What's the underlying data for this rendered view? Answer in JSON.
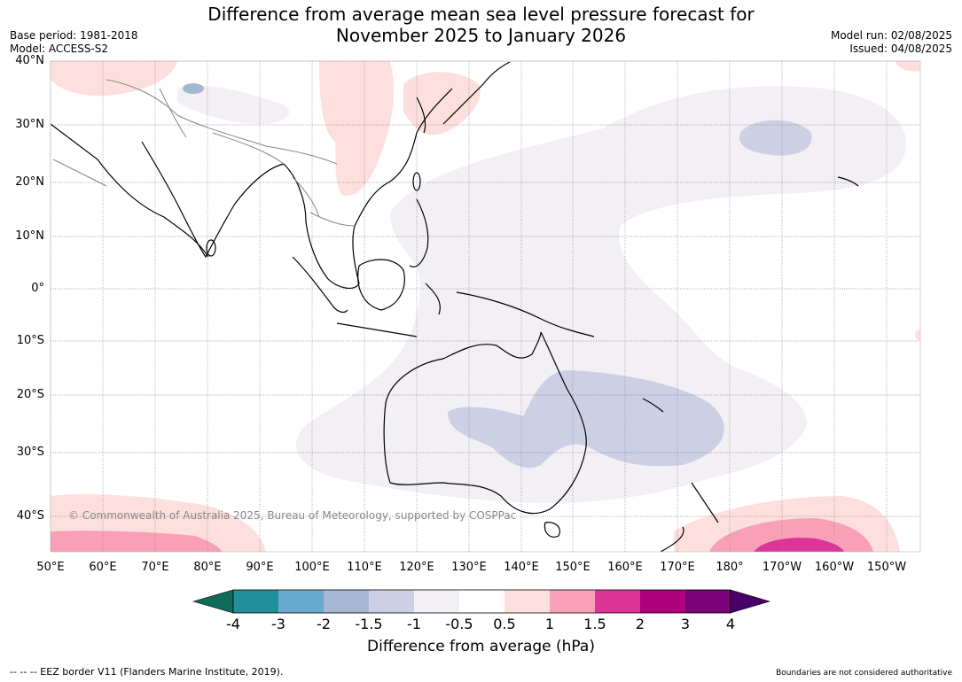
{
  "title_line1": "Difference from average mean sea level pressure forecast for",
  "title_line2": "November 2025 to January 2026",
  "meta_left": {
    "base_period": "Base period: 1981-2018",
    "model": "Model: ACCESS-S2"
  },
  "meta_right": {
    "model_run": "Model run: 02/08/2025",
    "issued": "Issued: 04/08/2025"
  },
  "lat_labels": [
    "40°N",
    "30°N",
    "20°N",
    "10°N",
    "0°",
    "10°S",
    "20°S",
    "30°S",
    "40°S"
  ],
  "lon_labels": [
    "50°E",
    "60°E",
    "70°E",
    "80°E",
    "90°E",
    "100°E",
    "110°E",
    "120°E",
    "130°E",
    "140°E",
    "150°E",
    "160°E",
    "170°E",
    "180°",
    "170°W",
    "160°W",
    "150°W"
  ],
  "copyright": "© Commonwealth of Australia 2025, Bureau of Meteorology, supported by COSPPac",
  "colorbar": {
    "title": "Difference from average (hPa)",
    "tick_labels": [
      "-4",
      "-3",
      "-2",
      "-1.5",
      "-1",
      "-0.5",
      "0.5",
      "1",
      "1.5",
      "2",
      "3",
      "4"
    ],
    "colors": [
      "#0f6b5a",
      "#1f9099",
      "#68a9cf",
      "#a6b7d4",
      "#cdd0e4",
      "#f2eff5",
      "#ffffff",
      "#fde0dd",
      "#f9a0b8",
      "#dd3497",
      "#ae017e",
      "#7a0177",
      "#49006a"
    ]
  },
  "footer_left": "--  --  -- EEZ border V11 (Flanders Marine Institute, 2019).",
  "footer_right": "Boundaries are not considered authoritative"
}
